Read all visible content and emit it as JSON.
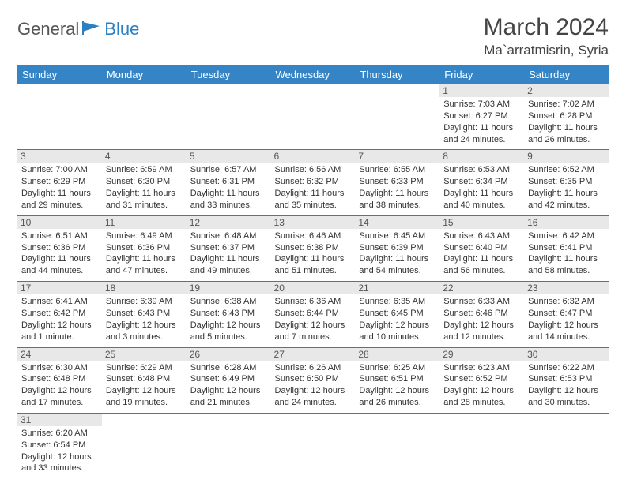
{
  "colors": {
    "header_bg": "#3585c6",
    "header_text": "#ffffff",
    "border": "#2d7fc1",
    "daynum_bg": "#e8e8e8",
    "body_text": "#333333",
    "logo_gray": "#555555",
    "logo_blue": "#2d7fc1"
  },
  "logo": {
    "part1": "General",
    "part2": "Blue"
  },
  "title": "March 2024",
  "location": "Ma`arratmisrin, Syria",
  "day_headers": [
    "Sunday",
    "Monday",
    "Tuesday",
    "Wednesday",
    "Thursday",
    "Friday",
    "Saturday"
  ],
  "weeks": [
    [
      null,
      null,
      null,
      null,
      null,
      {
        "d": "1",
        "sr": "Sunrise: 7:03 AM",
        "ss": "Sunset: 6:27 PM",
        "dl1": "Daylight: 11 hours",
        "dl2": "and 24 minutes."
      },
      {
        "d": "2",
        "sr": "Sunrise: 7:02 AM",
        "ss": "Sunset: 6:28 PM",
        "dl1": "Daylight: 11 hours",
        "dl2": "and 26 minutes."
      }
    ],
    [
      {
        "d": "3",
        "sr": "Sunrise: 7:00 AM",
        "ss": "Sunset: 6:29 PM",
        "dl1": "Daylight: 11 hours",
        "dl2": "and 29 minutes."
      },
      {
        "d": "4",
        "sr": "Sunrise: 6:59 AM",
        "ss": "Sunset: 6:30 PM",
        "dl1": "Daylight: 11 hours",
        "dl2": "and 31 minutes."
      },
      {
        "d": "5",
        "sr": "Sunrise: 6:57 AM",
        "ss": "Sunset: 6:31 PM",
        "dl1": "Daylight: 11 hours",
        "dl2": "and 33 minutes."
      },
      {
        "d": "6",
        "sr": "Sunrise: 6:56 AM",
        "ss": "Sunset: 6:32 PM",
        "dl1": "Daylight: 11 hours",
        "dl2": "and 35 minutes."
      },
      {
        "d": "7",
        "sr": "Sunrise: 6:55 AM",
        "ss": "Sunset: 6:33 PM",
        "dl1": "Daylight: 11 hours",
        "dl2": "and 38 minutes."
      },
      {
        "d": "8",
        "sr": "Sunrise: 6:53 AM",
        "ss": "Sunset: 6:34 PM",
        "dl1": "Daylight: 11 hours",
        "dl2": "and 40 minutes."
      },
      {
        "d": "9",
        "sr": "Sunrise: 6:52 AM",
        "ss": "Sunset: 6:35 PM",
        "dl1": "Daylight: 11 hours",
        "dl2": "and 42 minutes."
      }
    ],
    [
      {
        "d": "10",
        "sr": "Sunrise: 6:51 AM",
        "ss": "Sunset: 6:36 PM",
        "dl1": "Daylight: 11 hours",
        "dl2": "and 44 minutes."
      },
      {
        "d": "11",
        "sr": "Sunrise: 6:49 AM",
        "ss": "Sunset: 6:36 PM",
        "dl1": "Daylight: 11 hours",
        "dl2": "and 47 minutes."
      },
      {
        "d": "12",
        "sr": "Sunrise: 6:48 AM",
        "ss": "Sunset: 6:37 PM",
        "dl1": "Daylight: 11 hours",
        "dl2": "and 49 minutes."
      },
      {
        "d": "13",
        "sr": "Sunrise: 6:46 AM",
        "ss": "Sunset: 6:38 PM",
        "dl1": "Daylight: 11 hours",
        "dl2": "and 51 minutes."
      },
      {
        "d": "14",
        "sr": "Sunrise: 6:45 AM",
        "ss": "Sunset: 6:39 PM",
        "dl1": "Daylight: 11 hours",
        "dl2": "and 54 minutes."
      },
      {
        "d": "15",
        "sr": "Sunrise: 6:43 AM",
        "ss": "Sunset: 6:40 PM",
        "dl1": "Daylight: 11 hours",
        "dl2": "and 56 minutes."
      },
      {
        "d": "16",
        "sr": "Sunrise: 6:42 AM",
        "ss": "Sunset: 6:41 PM",
        "dl1": "Daylight: 11 hours",
        "dl2": "and 58 minutes."
      }
    ],
    [
      {
        "d": "17",
        "sr": "Sunrise: 6:41 AM",
        "ss": "Sunset: 6:42 PM",
        "dl1": "Daylight: 12 hours",
        "dl2": "and 1 minute."
      },
      {
        "d": "18",
        "sr": "Sunrise: 6:39 AM",
        "ss": "Sunset: 6:43 PM",
        "dl1": "Daylight: 12 hours",
        "dl2": "and 3 minutes."
      },
      {
        "d": "19",
        "sr": "Sunrise: 6:38 AM",
        "ss": "Sunset: 6:43 PM",
        "dl1": "Daylight: 12 hours",
        "dl2": "and 5 minutes."
      },
      {
        "d": "20",
        "sr": "Sunrise: 6:36 AM",
        "ss": "Sunset: 6:44 PM",
        "dl1": "Daylight: 12 hours",
        "dl2": "and 7 minutes."
      },
      {
        "d": "21",
        "sr": "Sunrise: 6:35 AM",
        "ss": "Sunset: 6:45 PM",
        "dl1": "Daylight: 12 hours",
        "dl2": "and 10 minutes."
      },
      {
        "d": "22",
        "sr": "Sunrise: 6:33 AM",
        "ss": "Sunset: 6:46 PM",
        "dl1": "Daylight: 12 hours",
        "dl2": "and 12 minutes."
      },
      {
        "d": "23",
        "sr": "Sunrise: 6:32 AM",
        "ss": "Sunset: 6:47 PM",
        "dl1": "Daylight: 12 hours",
        "dl2": "and 14 minutes."
      }
    ],
    [
      {
        "d": "24",
        "sr": "Sunrise: 6:30 AM",
        "ss": "Sunset: 6:48 PM",
        "dl1": "Daylight: 12 hours",
        "dl2": "and 17 minutes."
      },
      {
        "d": "25",
        "sr": "Sunrise: 6:29 AM",
        "ss": "Sunset: 6:48 PM",
        "dl1": "Daylight: 12 hours",
        "dl2": "and 19 minutes."
      },
      {
        "d": "26",
        "sr": "Sunrise: 6:28 AM",
        "ss": "Sunset: 6:49 PM",
        "dl1": "Daylight: 12 hours",
        "dl2": "and 21 minutes."
      },
      {
        "d": "27",
        "sr": "Sunrise: 6:26 AM",
        "ss": "Sunset: 6:50 PM",
        "dl1": "Daylight: 12 hours",
        "dl2": "and 24 minutes."
      },
      {
        "d": "28",
        "sr": "Sunrise: 6:25 AM",
        "ss": "Sunset: 6:51 PM",
        "dl1": "Daylight: 12 hours",
        "dl2": "and 26 minutes."
      },
      {
        "d": "29",
        "sr": "Sunrise: 6:23 AM",
        "ss": "Sunset: 6:52 PM",
        "dl1": "Daylight: 12 hours",
        "dl2": "and 28 minutes."
      },
      {
        "d": "30",
        "sr": "Sunrise: 6:22 AM",
        "ss": "Sunset: 6:53 PM",
        "dl1": "Daylight: 12 hours",
        "dl2": "and 30 minutes."
      }
    ],
    [
      {
        "d": "31",
        "sr": "Sunrise: 6:20 AM",
        "ss": "Sunset: 6:54 PM",
        "dl1": "Daylight: 12 hours",
        "dl2": "and 33 minutes."
      },
      null,
      null,
      null,
      null,
      null,
      null
    ]
  ]
}
